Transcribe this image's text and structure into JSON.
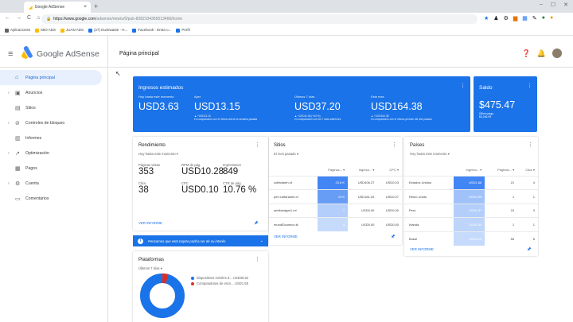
{
  "browser": {
    "tab_title": "Google AdSense",
    "url_host": "https://www.google.com",
    "url_path": "/adsense/new/u/0/pub-8382104369513466/home",
    "bookmarks": [
      "Aplicaciones",
      "MIO ADS",
      "JUAN ADS",
      "(27) Duckwaste - H...",
      "Facebook - Entra o...",
      "Perfil"
    ]
  },
  "app": {
    "brand": "Google AdSense",
    "page_title": "Página principal"
  },
  "sidebar": {
    "items": [
      {
        "label": "Página principal",
        "icon": "home-icon",
        "active": true,
        "caret": false
      },
      {
        "label": "Anuncios",
        "icon": "ads-icon",
        "active": false,
        "caret": true
      },
      {
        "label": "Sitios",
        "icon": "sites-icon",
        "active": false,
        "caret": false
      },
      {
        "label": "Controles de bloqueo",
        "icon": "block-icon",
        "active": false,
        "caret": true
      },
      {
        "label": "Informes",
        "icon": "reports-icon",
        "active": false,
        "caret": false
      },
      {
        "label": "Optimización",
        "icon": "optimization-icon",
        "active": false,
        "caret": true
      },
      {
        "label": "Pagos",
        "icon": "payments-icon",
        "active": false,
        "caret": false
      },
      {
        "label": "Cuenta",
        "icon": "account-icon",
        "active": false,
        "caret": true
      },
      {
        "label": "Comentarios",
        "icon": "feedback-icon",
        "active": false,
        "caret": false
      }
    ]
  },
  "estimated": {
    "title": "Ingresos estimados",
    "columns": [
      {
        "label": "Hoy hasta este momento",
        "value": "USD3.63",
        "sub1": "",
        "sub2": ""
      },
      {
        "label": "Ayer",
        "value": "USD13.15",
        "sub1": "▲ +USD13.15",
        "sub2": "en comparación con el mismo día de la semana pasada"
      },
      {
        "label": "Últimos 7 días",
        "value": "USD37.20",
        "sub1": "▲ +USD11.06 (+43 %)",
        "sub2": "en comparación con los 7 días anteriores"
      },
      {
        "label": "Este mes",
        "value": "USD164.38",
        "sub1": "▲ +USD164.38",
        "sub2": "en comparación con el mismo período del año pasado"
      }
    ]
  },
  "balance": {
    "title": "Saldo",
    "value": "$475.47",
    "sub1": "Último pago",
    "sub2": "$3,246.09"
  },
  "rendimiento": {
    "title": "Rendimiento",
    "range": "Hoy hasta este momento ▾",
    "metrics": [
      {
        "label": "Páginas vistas",
        "value": "353"
      },
      {
        "label": "RPM de pág.",
        "value": "USD10.28"
      },
      {
        "label": "Impresiones",
        "value": "849"
      },
      {
        "label": "Clics",
        "value": "38"
      },
      {
        "label": "CPC",
        "value": "USD0.10"
      },
      {
        "label": "CTR de pág.",
        "value": "10.76 %"
      }
    ],
    "link": "VER INFORME"
  },
  "sitios": {
    "title": "Sitios",
    "range": "El mes pasado ▾",
    "headers": [
      "",
      "Páginas... ▾",
      "Ingreso... ▾",
      "CPC ▾"
    ],
    "rows": [
      {
        "name": "cuffariamh.cf",
        "pages": "23.8 K",
        "income": "USD406.27",
        "cpc": "USD0.03",
        "shade": 1
      },
      {
        "name": "perl.cuffariamh.cf",
        "pages": "19 K",
        "income": "USD181.03",
        "cpc": "USD0.07",
        "shade": 0.8
      },
      {
        "name": "ariellandgar1.ml",
        "pages": "7",
        "income": "USD0.00",
        "cpc": "USD0.00",
        "shade": 0.4
      },
      {
        "name": "mundiDcumico.tk",
        "pages": "4",
        "income": "USD0.00",
        "cpc": "USD0.00",
        "shade": 0.3
      }
    ],
    "link": "VER INFORME"
  },
  "paises": {
    "title": "Países",
    "range": "Hoy hasta este momento ▾",
    "headers": [
      "",
      "Ingreso... ▾",
      "Páginas... ▾",
      "Clics ▾"
    ],
    "rows": [
      {
        "name": "Estados Unidos",
        "income": "USD1.66",
        "pages": "21",
        "clicks": "4",
        "shade": 1
      },
      {
        "name": "Reino Unido",
        "income": "USD0.59",
        "pages": "1",
        "clicks": "1",
        "shade": 0.5
      },
      {
        "name": "Perú",
        "income": "USD0.37",
        "pages": "24",
        "clicks": "3",
        "shade": 0.4
      },
      {
        "name": "Irlanda",
        "income": "USD0.30",
        "pages": "1",
        "clicks": "1",
        "shade": 0.35
      },
      {
        "name": "Brasil",
        "income": "USD0.16",
        "pages": "55",
        "clicks": "6",
        "shade": 0.3
      }
    ],
    "link": "VER INFORME"
  },
  "banner": {
    "text": "Pensamos que esta tarjeta podría ser de su interés"
  },
  "plataformas": {
    "title": "Plataformas",
    "range": "Últimos 7 días ▾",
    "legend": [
      {
        "label": "Dispositivos móviles d... USD35.62",
        "color": "#1a73e8"
      },
      {
        "label": "Computadoras de escri... USD1.58",
        "color": "#d93025"
      }
    ]
  },
  "colors": {
    "accent": "#1a73e8",
    "highlight": "#4285f4",
    "active_bg": "#e8f0fe"
  }
}
